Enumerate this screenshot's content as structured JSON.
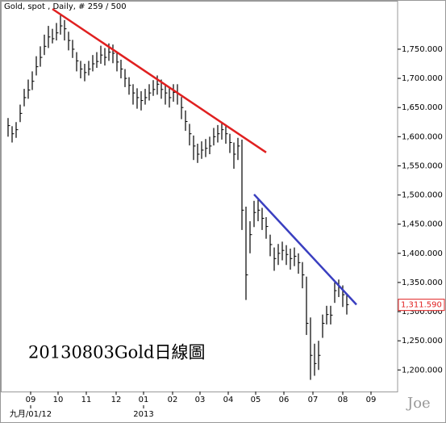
{
  "chart_data": {
    "type": "ohlc",
    "title": "Gold, spot , Daily, # 259 / 500",
    "annotation": "20130803Gold日線圖",
    "watermark": "Joe",
    "color": "#000000",
    "x": [
      0,
      1,
      2,
      3,
      4,
      5,
      6,
      7,
      8,
      9,
      10,
      11,
      12,
      13,
      14,
      15,
      16,
      17,
      18,
      19,
      20,
      21,
      22,
      23,
      24,
      25,
      26,
      27,
      28,
      29,
      30,
      31,
      32,
      33,
      34,
      35,
      36,
      37,
      38,
      39,
      40,
      41,
      42,
      43,
      44,
      45,
      46,
      47,
      48,
      49,
      50,
      51,
      52,
      53,
      54,
      55,
      56,
      57,
      58,
      59,
      60,
      61,
      62,
      63,
      64,
      65,
      66,
      67,
      68,
      69,
      70,
      71,
      72,
      73,
      74,
      75,
      76,
      77,
      78,
      79,
      80,
      81,
      82,
      83,
      84
    ],
    "high": [
      1632,
      1618,
      1625,
      1655,
      1682,
      1698,
      1712,
      1738,
      1755,
      1775,
      1790,
      1785,
      1795,
      1808,
      1800,
      1780,
      1766,
      1745,
      1730,
      1725,
      1730,
      1740,
      1745,
      1756,
      1752,
      1760,
      1758,
      1745,
      1732,
      1716,
      1702,
      1690,
      1683,
      1678,
      1682,
      1690,
      1697,
      1705,
      1698,
      1690,
      1683,
      1690,
      1690,
      1668,
      1645,
      1622,
      1602,
      1588,
      1592,
      1596,
      1600,
      1615,
      1620,
      1625,
      1620,
      1605,
      1590,
      1598,
      1595,
      1480,
      1455,
      1490,
      1495,
      1478,
      1462,
      1432,
      1410,
      1416,
      1420,
      1414,
      1408,
      1410,
      1400,
      1385,
      1360,
      1290,
      1245,
      1250,
      1295,
      1310,
      1310,
      1350,
      1355,
      1345,
      1330
    ],
    "low": [
      1600,
      1590,
      1598,
      1625,
      1652,
      1665,
      1680,
      1705,
      1720,
      1740,
      1752,
      1760,
      1765,
      1775,
      1765,
      1748,
      1735,
      1712,
      1700,
      1695,
      1705,
      1712,
      1718,
      1725,
      1722,
      1730,
      1726,
      1712,
      1700,
      1685,
      1672,
      1655,
      1648,
      1645,
      1655,
      1662,
      1670,
      1672,
      1665,
      1655,
      1650,
      1660,
      1655,
      1630,
      1610,
      1585,
      1560,
      1555,
      1562,
      1565,
      1570,
      1585,
      1590,
      1595,
      1588,
      1572,
      1545,
      1560,
      1440,
      1320,
      1400,
      1445,
      1455,
      1440,
      1425,
      1395,
      1370,
      1380,
      1388,
      1380,
      1372,
      1378,
      1365,
      1340,
      1260,
      1183,
      1190,
      1200,
      1255,
      1278,
      1278,
      1315,
      1325,
      1308,
      1295
    ],
    "close": [
      1619,
      1605,
      1612,
      1640,
      1667,
      1680,
      1695,
      1720,
      1736,
      1755,
      1771,
      1768,
      1778,
      1790,
      1785,
      1765,
      1750,
      1730,
      1716,
      1710,
      1716,
      1725,
      1729,
      1740,
      1736,
      1745,
      1743,
      1728,
      1716,
      1700,
      1688,
      1675,
      1667,
      1662,
      1667,
      1675,
      1681,
      1690,
      1681,
      1675,
      1667,
      1676,
      1674,
      1650,
      1626,
      1605,
      1584,
      1570,
      1577,
      1580,
      1584,
      1600,
      1605,
      1612,
      1605,
      1590,
      1570,
      1584,
      1474,
      1363,
      1432,
      1470,
      1474,
      1460,
      1446,
      1415,
      1391,
      1400,
      1405,
      1398,
      1391,
      1395,
      1384,
      1363,
      1280,
      1225,
      1211,
      1225,
      1280,
      1295,
      1294,
      1336,
      1343,
      1329,
      1312
    ],
    "xlim": [
      -1.6,
      96.6
    ],
    "xticks": [
      {
        "value": 5.6,
        "label": "09"
      },
      {
        "value": 12.4,
        "label": "10"
      },
      {
        "value": 19.4,
        "label": "11"
      },
      {
        "value": 26.8,
        "label": "12"
      },
      {
        "value": 33.6,
        "label": "01"
      },
      {
        "value": 40.8,
        "label": "02"
      },
      {
        "value": 47.6,
        "label": "03"
      },
      {
        "value": 54.6,
        "label": "04"
      },
      {
        "value": 61.4,
        "label": "05"
      },
      {
        "value": 68.4,
        "label": "06"
      },
      {
        "value": 75.6,
        "label": "07"
      },
      {
        "value": 83,
        "label": "08"
      },
      {
        "value": 90,
        "label": "09"
      }
    ],
    "x_sublabels": [
      {
        "value": 5.6,
        "label": "九月/01/12"
      },
      {
        "value": 33.6,
        "label": "2013"
      }
    ],
    "ylim": [
      1163,
      1833
    ],
    "yticks": [
      {
        "value": 1200,
        "label": "1,200.000"
      },
      {
        "value": 1250,
        "label": "1,250.000"
      },
      {
        "value": 1300,
        "label": "1,300.000"
      },
      {
        "value": 1350,
        "label": "1,350.000"
      },
      {
        "value": 1400,
        "label": "1,400.000"
      },
      {
        "value": 1450,
        "label": "1,450.000"
      },
      {
        "value": 1500,
        "label": "1,500.000"
      },
      {
        "value": 1550,
        "label": "1,550.000"
      },
      {
        "value": 1600,
        "label": "1,600.000"
      },
      {
        "value": 1650,
        "label": "1,650.000"
      },
      {
        "value": 1700,
        "label": "1,700.000"
      },
      {
        "value": 1750,
        "label": "1,750.000"
      }
    ],
    "last_price": {
      "value": 1311.59,
      "label": "1,311.590",
      "color": "#e02020"
    },
    "trendlines": [
      {
        "color": "#e02020",
        "x": [
          11,
          64
        ],
        "y": [
          1819,
          1573
        ]
      },
      {
        "color": "#3a3fc0",
        "x": [
          61,
          86.4
        ],
        "y": [
          1501,
          1312
        ]
      }
    ]
  }
}
